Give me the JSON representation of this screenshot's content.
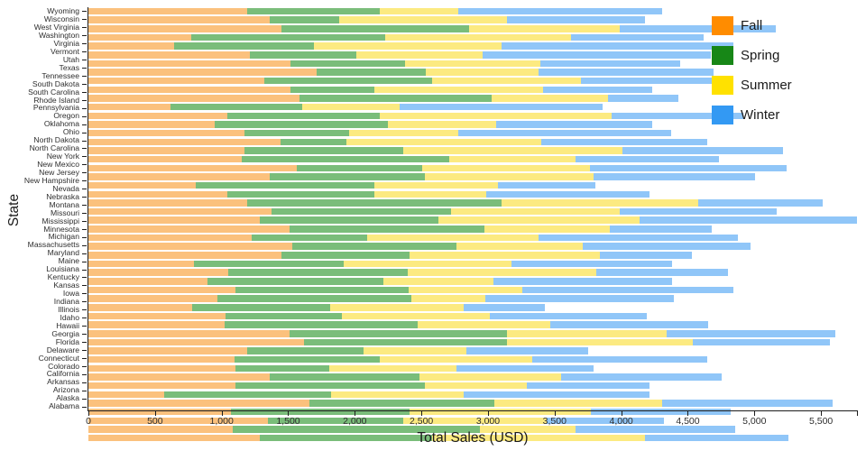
{
  "chart_data": {
    "type": "bar",
    "orientation": "horizontal",
    "stacked": true,
    "xlabel": "Total Sales (USD)",
    "ylabel": "State",
    "xlim": [
      0,
      5770
    ],
    "grid": false,
    "legend_position": "top-right",
    "x_ticks": [
      0,
      500,
      1000,
      1500,
      2000,
      2500,
      3000,
      3500,
      4000,
      4500,
      5000,
      5500
    ],
    "x_tick_labels": [
      "0",
      "500",
      "1,000",
      "1,500",
      "2,000",
      "2,500",
      "3,000",
      "3,500",
      "4,000",
      "4,500",
      "5,000",
      "5,500"
    ],
    "categories_order": "top-to-bottom",
    "categories": [
      "Wyoming",
      "Wisconsin",
      "West Virginia",
      "Washington",
      "Virginia",
      "Vermont",
      "Utah",
      "Texas",
      "Tennessee",
      "South Dakota",
      "South Carolina",
      "Rhode Island",
      "Pennsylvania",
      "Oregon",
      "Oklahoma",
      "Ohio",
      "North Dakota",
      "North Carolina",
      "New York",
      "New Mexico",
      "New Jersey",
      "New Hampshire",
      "Nevada",
      "Nebraska",
      "Montana",
      "Missouri",
      "Mississippi",
      "Minnesota",
      "Michigan",
      "Massachusetts",
      "Maryland",
      "Maine",
      "Louisiana",
      "Kentucky",
      "Kansas",
      "Iowa",
      "Indiana",
      "Illinois",
      "Idaho",
      "Hawaii",
      "Georgia",
      "Florida",
      "Delaware",
      "Connecticut",
      "Colorado",
      "California",
      "Arkansas",
      "Arizona",
      "Alaska",
      "Alabama"
    ],
    "series": [
      {
        "name": "Fall",
        "color": "#FF8C00",
        "bar_color": "#FBC17D",
        "values": [
          1190,
          1360,
          1450,
          775,
          645,
          1215,
          1520,
          1715,
          1320,
          1520,
          1585,
          615,
          1040,
          945,
          1170,
          1445,
          1170,
          1150,
          1565,
          1360,
          805,
          1040,
          1190,
          1375,
          1290,
          1510,
          1225,
          1530,
          1450,
          795,
          1050,
          895,
          1105,
          970,
          780,
          1030,
          1020,
          1510,
          1620,
          1190,
          1095,
          1105,
          1360,
          1105,
          570,
          1660,
          1070,
          1350,
          1085,
          1285
        ]
      },
      {
        "name": "Spring",
        "color": "#178717",
        "bar_color": "#7ABD7A",
        "values": [
          995,
          520,
          1410,
          1455,
          1045,
          795,
          855,
          820,
          1260,
          630,
          1440,
          990,
          1145,
          1305,
          785,
          495,
          1195,
          1560,
          940,
          1165,
          1345,
          1110,
          1910,
          1345,
          1335,
          1465,
          865,
          1230,
          960,
          1120,
          1345,
          1320,
          1300,
          1455,
          1035,
          875,
          1455,
          1630,
          1525,
          875,
          1090,
          705,
          1125,
          1420,
          1250,
          1390,
          1340,
          1015,
          1855,
          1295
        ]
      },
      {
        "name": "Summer",
        "color": "#FFE100",
        "bar_color": "#FCEA81",
        "values": [
          590,
          1265,
          1130,
          1390,
          1410,
          950,
          1015,
          845,
          1120,
          1265,
          875,
          730,
          1745,
          810,
          825,
          1460,
          1645,
          945,
          1260,
          1265,
          925,
          835,
          1475,
          1270,
          1515,
          940,
          1290,
          950,
          1430,
          1260,
          1420,
          825,
          855,
          555,
          1005,
          1110,
          990,
          1200,
          1390,
          770,
          1150,
          950,
          1065,
          765,
          1000,
          1260,
          1365,
          1075,
          715,
          1600
        ]
      },
      {
        "name": "Winter",
        "color": "#3399F3",
        "bar_color": "#90C6F8",
        "values": [
          1530,
          1035,
          1170,
          1000,
          1740,
          1715,
          1055,
          1315,
          1025,
          815,
          530,
          1525,
          990,
          1175,
          1595,
          1245,
          1205,
          1080,
          1480,
          1215,
          730,
          1230,
          935,
          1180,
          1630,
          765,
          1495,
          1260,
          690,
          1210,
          985,
          1345,
          1580,
          1415,
          610,
          1175,
          1185,
          1270,
          1035,
          915,
          1310,
          1030,
          1205,
          925,
          1395,
          1280,
          1045,
          880,
          1200,
          1075
        ]
      }
    ]
  },
  "legend": {
    "items": [
      {
        "label": "Fall",
        "color": "#FF8C00"
      },
      {
        "label": "Spring",
        "color": "#178717"
      },
      {
        "label": "Summer",
        "color": "#FFE100"
      },
      {
        "label": "Winter",
        "color": "#3399F3"
      }
    ]
  }
}
